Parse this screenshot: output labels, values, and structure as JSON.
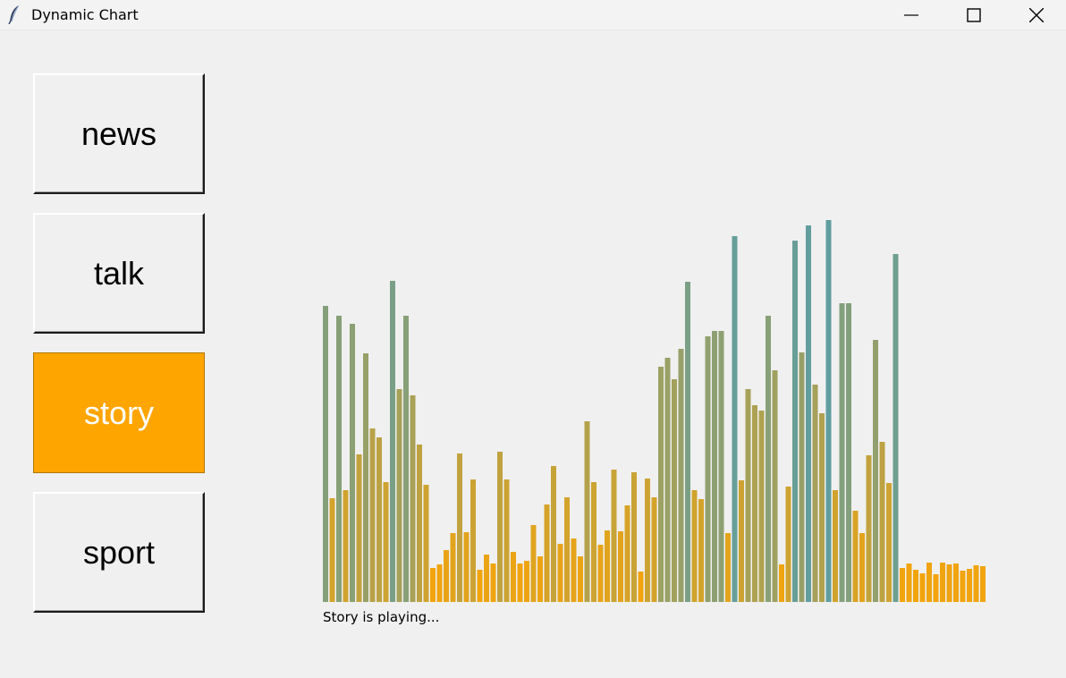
{
  "window": {
    "title": "Dynamic Chart",
    "controls": {
      "minimize": "minimize-icon",
      "maximize": "maximize-icon",
      "close": "close-icon"
    }
  },
  "buttons": [
    {
      "id": "news",
      "label": "news",
      "active": false
    },
    {
      "id": "talk",
      "label": "talk",
      "active": false
    },
    {
      "id": "story",
      "label": "story",
      "active": true
    },
    {
      "id": "sport",
      "label": "sport",
      "active": false
    }
  ],
  "colors": {
    "background": "#f0f0f0",
    "active_button": "#ffa500",
    "bar_low": "#ffa500",
    "bar_high": "#5f9ea0"
  },
  "status": {
    "text": "Story is playing..."
  },
  "chart_data": {
    "type": "bar",
    "title": "",
    "xlabel": "",
    "ylabel": "",
    "axes_visible": false,
    "color_gradient": [
      "#ffa500",
      "#5f9ea0"
    ],
    "ylim": [
      0,
      430
    ],
    "values": [
      331,
      116,
      320,
      125,
      311,
      165,
      278,
      194,
      184,
      134,
      359,
      238,
      320,
      231,
      176,
      131,
      38,
      42,
      58,
      77,
      166,
      78,
      137,
      36,
      53,
      43,
      168,
      137,
      56,
      43,
      46,
      86,
      51,
      109,
      152,
      65,
      117,
      71,
      51,
      202,
      134,
      64,
      80,
      148,
      79,
      108,
      145,
      34,
      138,
      117,
      263,
      273,
      249,
      283,
      358,
      125,
      115,
      297,
      303,
      303,
      77,
      409,
      136,
      238,
      220,
      214,
      320,
      259,
      42,
      129,
      404,
      279,
      421,
      243,
      211,
      427,
      125,
      334,
      334,
      102,
      77,
      164,
      293,
      179,
      133,
      389,
      38,
      43,
      36,
      32,
      44,
      31,
      44,
      42,
      43,
      35,
      37,
      41,
      40
    ]
  }
}
